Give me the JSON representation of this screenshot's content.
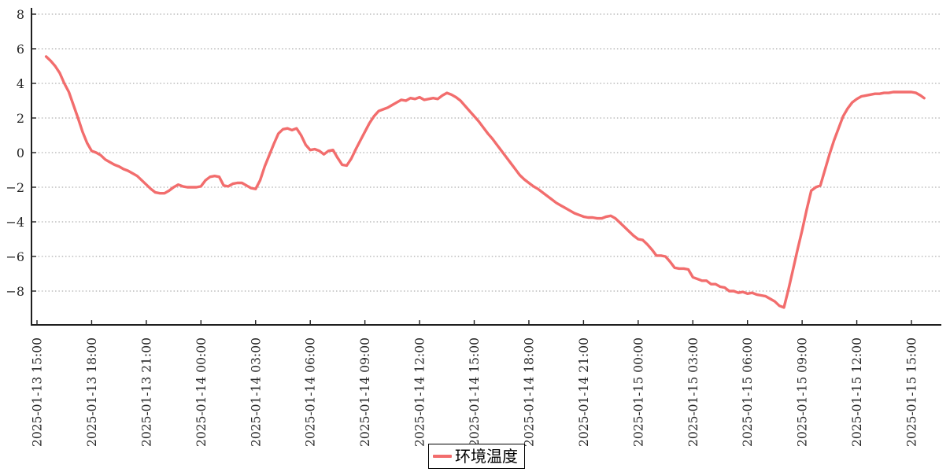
{
  "colors": {
    "series_line": "#f26d6d",
    "grid": "#9a9a9a",
    "axis": "#1f1f1f",
    "tick_label": "#262626",
    "background": "#ffffff",
    "legend_border": "#000000"
  },
  "legend": {
    "label": "环境温度",
    "position": "bottom-center"
  },
  "chart_data": {
    "type": "line",
    "title": "",
    "xlabel": "",
    "ylabel": "",
    "grid": "horizontal dotted",
    "legend_position": "bottom-center",
    "x_unit": "hours since 2025-01-13 15:00",
    "x_start_label": "2025-01-13 15:00",
    "x_tick_interval_hours": 3,
    "x_tick_labels": [
      "2025-01-13 15:00",
      "2025-01-13 18:00",
      "2025-01-13 21:00",
      "2025-01-14 00:00",
      "2025-01-14 03:00",
      "2025-01-14 06:00",
      "2025-01-14 09:00",
      "2025-01-14 12:00",
      "2025-01-14 15:00",
      "2025-01-14 18:00",
      "2025-01-14 21:00",
      "2025-01-15 00:00",
      "2025-01-15 03:00",
      "2025-01-15 06:00",
      "2025-01-15 09:00",
      "2025-01-15 12:00",
      "2025-01-15 15:00"
    ],
    "y_ticks": [
      8,
      6,
      4,
      2,
      0,
      -2,
      -4,
      -6,
      -8
    ],
    "ylim": [
      -9.9,
      8.3
    ],
    "xlim_hours": [
      0,
      48.6
    ],
    "series": [
      {
        "name": "环境温度",
        "color": "#f26d6d",
        "points": [
          [
            0.5,
            5.55
          ],
          [
            0.75,
            5.3
          ],
          [
            1,
            5.0
          ],
          [
            1.25,
            4.6
          ],
          [
            1.5,
            4.0
          ],
          [
            1.75,
            3.5
          ],
          [
            2,
            2.75
          ],
          [
            2.25,
            2.0
          ],
          [
            2.5,
            1.2
          ],
          [
            2.75,
            0.55
          ],
          [
            3,
            0.1
          ],
          [
            3.25,
            0.0
          ],
          [
            3.5,
            -0.15
          ],
          [
            3.75,
            -0.4
          ],
          [
            4,
            -0.55
          ],
          [
            4.25,
            -0.7
          ],
          [
            4.5,
            -0.8
          ],
          [
            4.75,
            -0.95
          ],
          [
            5,
            -1.05
          ],
          [
            5.25,
            -1.2
          ],
          [
            5.5,
            -1.35
          ],
          [
            5.75,
            -1.6
          ],
          [
            6,
            -1.85
          ],
          [
            6.25,
            -2.1
          ],
          [
            6.5,
            -2.3
          ],
          [
            6.75,
            -2.35
          ],
          [
            7,
            -2.35
          ],
          [
            7.25,
            -2.2
          ],
          [
            7.5,
            -2.0
          ],
          [
            7.75,
            -1.85
          ],
          [
            8,
            -1.95
          ],
          [
            8.25,
            -2.0
          ],
          [
            8.5,
            -2.0
          ],
          [
            8.75,
            -2.0
          ],
          [
            9,
            -1.95
          ],
          [
            9.25,
            -1.6
          ],
          [
            9.5,
            -1.4
          ],
          [
            9.75,
            -1.35
          ],
          [
            10,
            -1.4
          ],
          [
            10.25,
            -1.9
          ],
          [
            10.5,
            -1.95
          ],
          [
            10.75,
            -1.8
          ],
          [
            11,
            -1.75
          ],
          [
            11.25,
            -1.75
          ],
          [
            11.5,
            -1.9
          ],
          [
            11.75,
            -2.05
          ],
          [
            12,
            -2.1
          ],
          [
            12.25,
            -1.6
          ],
          [
            12.5,
            -0.8
          ],
          [
            12.75,
            -0.15
          ],
          [
            13,
            0.5
          ],
          [
            13.25,
            1.1
          ],
          [
            13.5,
            1.35
          ],
          [
            13.75,
            1.4
          ],
          [
            14,
            1.3
          ],
          [
            14.25,
            1.4
          ],
          [
            14.5,
            1.0
          ],
          [
            14.75,
            0.45
          ],
          [
            15,
            0.15
          ],
          [
            15.25,
            0.2
          ],
          [
            15.5,
            0.1
          ],
          [
            15.75,
            -0.1
          ],
          [
            16,
            0.1
          ],
          [
            16.25,
            0.15
          ],
          [
            16.5,
            -0.3
          ],
          [
            16.75,
            -0.7
          ],
          [
            17,
            -0.75
          ],
          [
            17.25,
            -0.35
          ],
          [
            17.5,
            0.2
          ],
          [
            17.75,
            0.7
          ],
          [
            18,
            1.2
          ],
          [
            18.25,
            1.7
          ],
          [
            18.5,
            2.1
          ],
          [
            18.75,
            2.4
          ],
          [
            19,
            2.5
          ],
          [
            19.25,
            2.6
          ],
          [
            19.5,
            2.75
          ],
          [
            19.75,
            2.9
          ],
          [
            20,
            3.05
          ],
          [
            20.25,
            3.0
          ],
          [
            20.5,
            3.15
          ],
          [
            20.75,
            3.1
          ],
          [
            21,
            3.2
          ],
          [
            21.25,
            3.05
          ],
          [
            21.5,
            3.1
          ],
          [
            21.75,
            3.15
          ],
          [
            22,
            3.1
          ],
          [
            22.25,
            3.3
          ],
          [
            22.5,
            3.45
          ],
          [
            22.75,
            3.35
          ],
          [
            23,
            3.2
          ],
          [
            23.25,
            3.0
          ],
          [
            23.5,
            2.7
          ],
          [
            23.75,
            2.4
          ],
          [
            24,
            2.1
          ],
          [
            24.25,
            1.8
          ],
          [
            24.5,
            1.45
          ],
          [
            24.75,
            1.1
          ],
          [
            25,
            0.8
          ],
          [
            25.25,
            0.45
          ],
          [
            25.5,
            0.1
          ],
          [
            25.75,
            -0.25
          ],
          [
            26,
            -0.6
          ],
          [
            26.25,
            -0.95
          ],
          [
            26.5,
            -1.3
          ],
          [
            26.75,
            -1.55
          ],
          [
            27,
            -1.75
          ],
          [
            27.25,
            -1.95
          ],
          [
            27.5,
            -2.1
          ],
          [
            27.75,
            -2.3
          ],
          [
            28,
            -2.5
          ],
          [
            28.25,
            -2.7
          ],
          [
            28.5,
            -2.9
          ],
          [
            28.75,
            -3.05
          ],
          [
            29,
            -3.2
          ],
          [
            29.25,
            -3.35
          ],
          [
            29.5,
            -3.5
          ],
          [
            29.75,
            -3.6
          ],
          [
            30,
            -3.7
          ],
          [
            30.25,
            -3.75
          ],
          [
            30.5,
            -3.75
          ],
          [
            30.75,
            -3.8
          ],
          [
            31,
            -3.8
          ],
          [
            31.25,
            -3.7
          ],
          [
            31.5,
            -3.65
          ],
          [
            31.75,
            -3.8
          ],
          [
            32,
            -4.05
          ],
          [
            32.25,
            -4.3
          ],
          [
            32.5,
            -4.55
          ],
          [
            32.75,
            -4.8
          ],
          [
            33,
            -5.0
          ],
          [
            33.25,
            -5.05
          ],
          [
            33.5,
            -5.3
          ],
          [
            33.75,
            -5.6
          ],
          [
            34,
            -5.95
          ],
          [
            34.25,
            -5.95
          ],
          [
            34.5,
            -6.0
          ],
          [
            34.75,
            -6.3
          ],
          [
            35,
            -6.65
          ],
          [
            35.25,
            -6.7
          ],
          [
            35.5,
            -6.7
          ],
          [
            35.75,
            -6.75
          ],
          [
            36,
            -7.2
          ],
          [
            36.25,
            -7.3
          ],
          [
            36.5,
            -7.4
          ],
          [
            36.75,
            -7.4
          ],
          [
            37,
            -7.6
          ],
          [
            37.25,
            -7.6
          ],
          [
            37.5,
            -7.75
          ],
          [
            37.75,
            -7.8
          ],
          [
            38,
            -8.0
          ],
          [
            38.25,
            -8.0
          ],
          [
            38.5,
            -8.1
          ],
          [
            38.75,
            -8.05
          ],
          [
            39,
            -8.15
          ],
          [
            39.25,
            -8.1
          ],
          [
            39.5,
            -8.2
          ],
          [
            39.75,
            -8.25
          ],
          [
            40,
            -8.3
          ],
          [
            40.25,
            -8.45
          ],
          [
            40.5,
            -8.6
          ],
          [
            40.75,
            -8.85
          ],
          [
            41,
            -8.95
          ],
          [
            41.25,
            -7.9
          ],
          [
            41.5,
            -6.75
          ],
          [
            41.75,
            -5.6
          ],
          [
            42,
            -4.5
          ],
          [
            42.25,
            -3.3
          ],
          [
            42.5,
            -2.2
          ],
          [
            42.75,
            -2.0
          ],
          [
            43,
            -1.9
          ],
          [
            43.25,
            -1.0
          ],
          [
            43.5,
            -0.1
          ],
          [
            43.75,
            0.7
          ],
          [
            44,
            1.4
          ],
          [
            44.25,
            2.1
          ],
          [
            44.5,
            2.55
          ],
          [
            44.75,
            2.9
          ],
          [
            45,
            3.1
          ],
          [
            45.25,
            3.25
          ],
          [
            45.5,
            3.3
          ],
          [
            45.75,
            3.35
          ],
          [
            46,
            3.4
          ],
          [
            46.25,
            3.4
          ],
          [
            46.5,
            3.45
          ],
          [
            46.75,
            3.45
          ],
          [
            47,
            3.5
          ],
          [
            47.25,
            3.5
          ],
          [
            47.5,
            3.5
          ],
          [
            47.75,
            3.5
          ],
          [
            48,
            3.5
          ],
          [
            48.25,
            3.45
          ],
          [
            48.5,
            3.3
          ],
          [
            48.7,
            3.15
          ]
        ]
      }
    ]
  }
}
